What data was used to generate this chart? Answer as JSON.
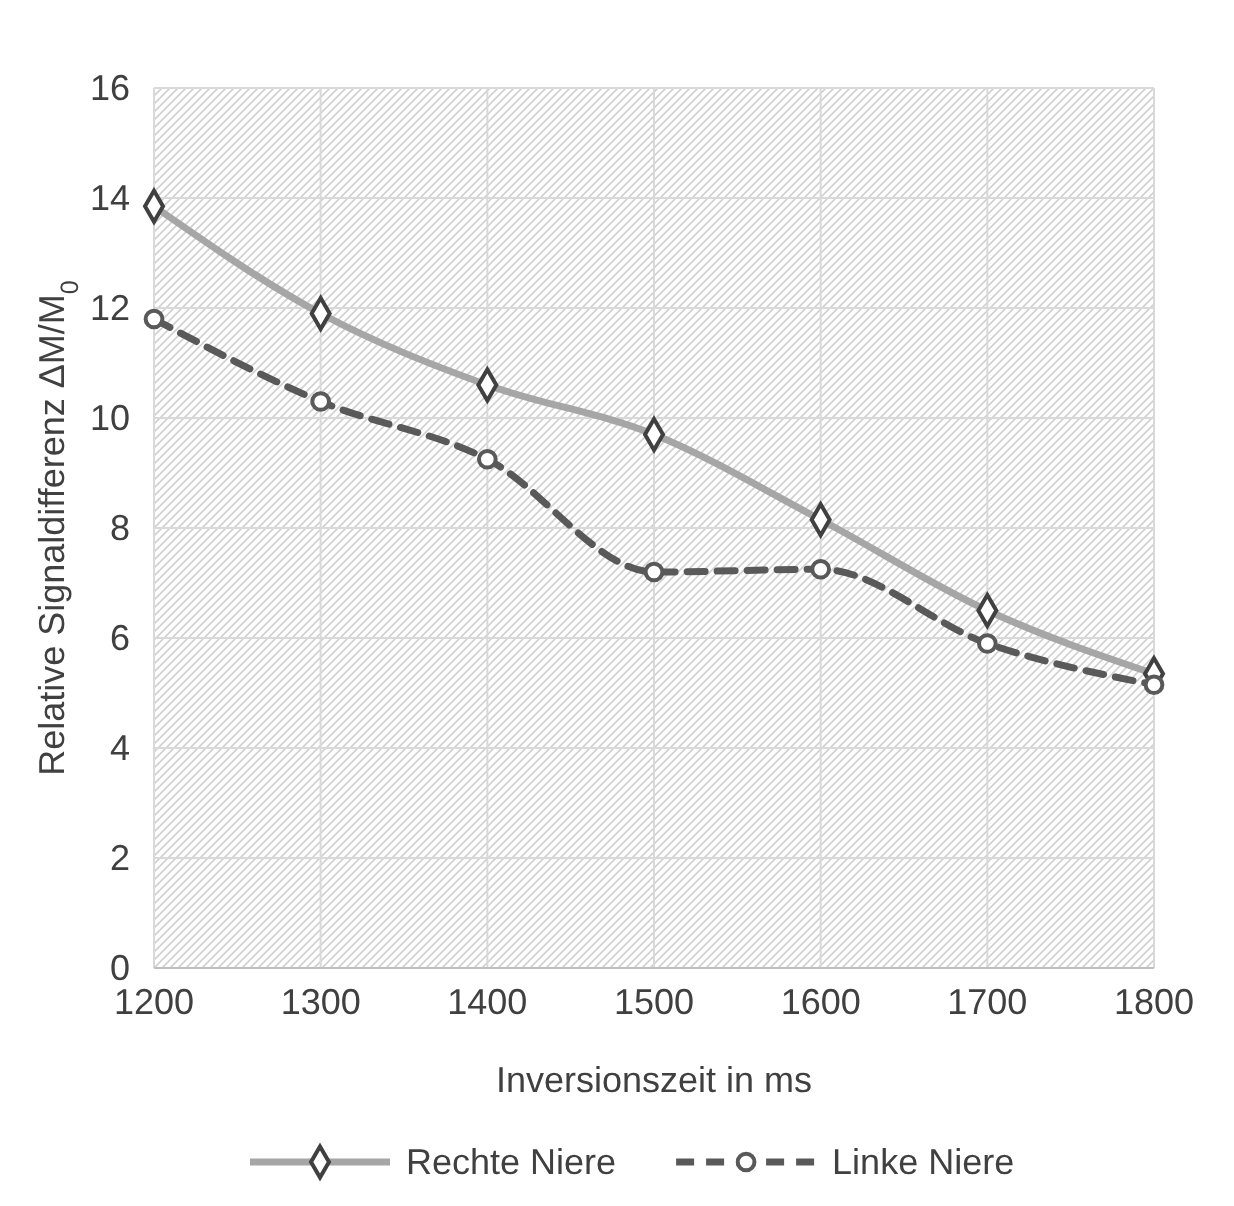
{
  "chart_data": {
    "type": "line",
    "xlabel": "Inversionszeit in ms",
    "ylabel": "Relative Signaldifferenz ΔM/M$_{0}$",
    "x": [
      1200,
      1300,
      1400,
      1500,
      1600,
      1700,
      1800
    ],
    "series": [
      {
        "name": "Rechte Niere",
        "color": "#a6a6a6",
        "marker": "diamond",
        "line_style": "solid",
        "values": [
          13.85,
          11.9,
          10.6,
          9.7,
          8.15,
          6.5,
          5.35
        ]
      },
      {
        "name": "Linke Niere",
        "color": "#595959",
        "marker": "circle",
        "line_style": "dashed",
        "values": [
          11.8,
          10.3,
          9.25,
          7.2,
          7.25,
          5.9,
          5.15
        ]
      }
    ],
    "xlim": [
      1200,
      1800
    ],
    "xticks": [
      1200,
      1300,
      1400,
      1500,
      1600,
      1700,
      1800
    ],
    "ylim": [
      0,
      16
    ],
    "yticks": [
      0,
      2,
      4,
      6,
      8,
      10,
      12,
      14,
      16
    ],
    "grid": true,
    "legend": "bottom"
  }
}
